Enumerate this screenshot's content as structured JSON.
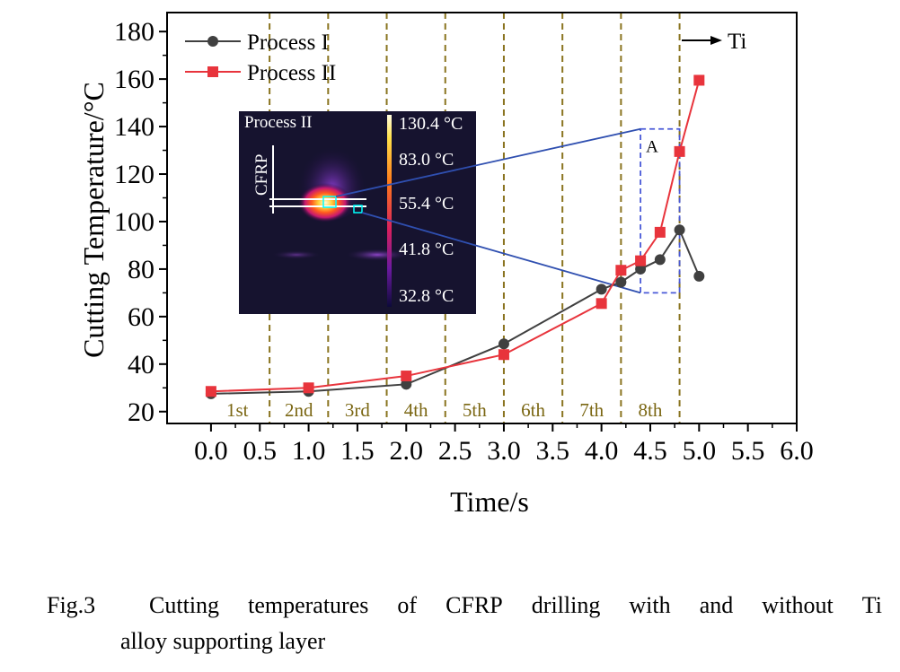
{
  "chart_data": {
    "type": "line",
    "xlabel": "Time/s",
    "ylabel": "Cutting Temperature/°C",
    "xlim": [
      -0.45,
      6.0
    ],
    "ylim": [
      15,
      188
    ],
    "xticks": [
      "0.0",
      "0.5",
      "1.0",
      "1.5",
      "2.0",
      "2.5",
      "3.0",
      "3.5",
      "4.0",
      "4.5",
      "5.0",
      "5.5",
      "6.0"
    ],
    "yticks": [
      "20",
      "40",
      "60",
      "80",
      "100",
      "120",
      "140",
      "160",
      "180"
    ],
    "legend_position": "top-left",
    "series": [
      {
        "name": "Process I",
        "color": "#404040",
        "marker": "circle",
        "x": [
          0.0,
          1.0,
          2.0,
          3.0,
          4.0,
          4.2,
          4.4,
          4.6,
          4.8,
          5.0
        ],
        "y": [
          27.5,
          28.5,
          31.5,
          48.5,
          71.5,
          74.5,
          80.0,
          84.0,
          96.5,
          77.0
        ]
      },
      {
        "name": "Process II",
        "color": "#e8343c",
        "marker": "square",
        "x": [
          0.0,
          1.0,
          2.0,
          3.0,
          4.0,
          4.2,
          4.4,
          4.6,
          4.8,
          5.0
        ],
        "y": [
          28.5,
          30.0,
          35.0,
          44.0,
          65.5,
          79.5,
          83.5,
          95.5,
          129.5,
          159.5
        ]
      }
    ],
    "stage_lines_x": [
      0.6,
      1.2,
      1.8,
      2.4,
      3.0,
      3.6,
      4.2,
      4.8
    ],
    "stage_labels": [
      {
        "text": "1st",
        "x": 0.27
      },
      {
        "text": "2nd",
        "x": 0.9
      },
      {
        "text": "3rd",
        "x": 1.5
      },
      {
        "text": "4th",
        "x": 2.1
      },
      {
        "text": "5th",
        "x": 2.7
      },
      {
        "text": "6th",
        "x": 3.3
      },
      {
        "text": "7th",
        "x": 3.9
      },
      {
        "text": "8th",
        "x": 4.5
      }
    ],
    "annotations": {
      "ti_label": "Ti",
      "box_label": "A",
      "box_range": {
        "x": [
          4.4,
          4.8
        ],
        "y": [
          70,
          139
        ]
      }
    },
    "inset": {
      "title": "Process II",
      "material_label": "CFRP",
      "scale_labels": [
        "130.4 °C",
        "83.0 °C",
        "55.4 °C",
        "41.8 °C",
        "32.8 °C"
      ]
    }
  },
  "caption": {
    "number": "Fig.3",
    "line1_words": [
      "Cutting",
      "temperatures",
      "of",
      "CFRP",
      "drilling",
      "with",
      "and",
      "without",
      "Ti"
    ],
    "line2": "alloy supporting layer"
  }
}
